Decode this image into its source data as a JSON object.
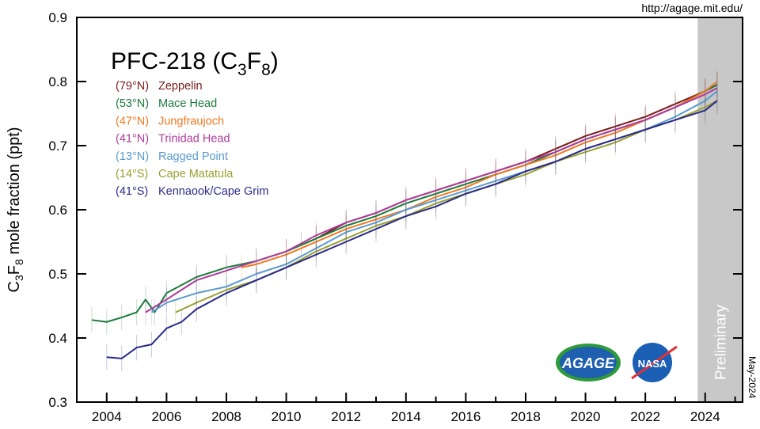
{
  "source_url": "http://agage.mit.edu/",
  "date_stamp": "May-2024",
  "logos": [
    "AGAGE",
    "NASA"
  ],
  "chart_data": {
    "type": "line",
    "title": "PFC-218 (C3F8)",
    "title_main": "PFC-218 (C",
    "title_sub1": "3",
    "title_mid": "F",
    "title_sub2": "8",
    "title_end": ")",
    "ylabel_parts": {
      "a": "C",
      "s1": "3",
      "b": "F",
      "s2": "8",
      "c": " mole fraction (ppt)"
    },
    "xlabel": "",
    "xlim": [
      2003,
      2025.25
    ],
    "ylim": [
      0.3,
      0.9
    ],
    "xticks": [
      2004,
      2006,
      2008,
      2010,
      2012,
      2014,
      2016,
      2018,
      2020,
      2022,
      2024
    ],
    "yticks": [
      "0.3",
      "0.4",
      "0.5",
      "0.6",
      "0.7",
      "0.8",
      "0.9"
    ],
    "grid": false,
    "legend_position": "top-left",
    "shaded_region": {
      "label": "Preliminary",
      "x_start": 2023.75,
      "x_end": 2025.25,
      "color": "#c8c8c8"
    },
    "series": [
      {
        "name": "Zeppelin",
        "lat": "(79°N)",
        "color": "#7a1a1a",
        "x": [
          2010.5,
          2011,
          2012,
          2013,
          2014,
          2015,
          2016,
          2017,
          2018,
          2019,
          2020,
          2021,
          2022,
          2023,
          2024,
          2024.4
        ],
        "y": [
          0.545,
          0.555,
          0.58,
          0.595,
          0.615,
          0.63,
          0.645,
          0.66,
          0.675,
          0.695,
          0.715,
          0.73,
          0.745,
          0.765,
          0.785,
          0.795
        ]
      },
      {
        "name": "Mace Head",
        "lat": "(53°N)",
        "color": "#1a7a3a",
        "x": [
          2003.5,
          2004,
          2004.5,
          2005,
          2005.3,
          2005.6,
          2006,
          2007,
          2008,
          2009,
          2010,
          2011,
          2012,
          2013,
          2014,
          2015,
          2016,
          2017,
          2018,
          2019,
          2020,
          2021,
          2022,
          2023,
          2024,
          2024.4
        ],
        "y": [
          0.428,
          0.425,
          0.432,
          0.44,
          0.46,
          0.44,
          0.47,
          0.495,
          0.51,
          0.52,
          0.535,
          0.555,
          0.575,
          0.59,
          0.61,
          0.625,
          0.64,
          0.655,
          0.67,
          0.69,
          0.71,
          0.725,
          0.74,
          0.76,
          0.785,
          0.795
        ]
      },
      {
        "name": "Jungfraujoch",
        "lat": "(47°N)",
        "color": "#f07820",
        "x": [
          2008.5,
          2009,
          2010,
          2011,
          2012,
          2013,
          2014,
          2015,
          2016,
          2017,
          2018,
          2019,
          2020,
          2021,
          2022,
          2023,
          2024,
          2024.4
        ],
        "y": [
          0.51,
          0.515,
          0.53,
          0.55,
          0.57,
          0.585,
          0.6,
          0.62,
          0.635,
          0.655,
          0.67,
          0.685,
          0.705,
          0.72,
          0.74,
          0.76,
          0.785,
          0.8
        ]
      },
      {
        "name": "Trinidad Head",
        "lat": "(41°N)",
        "color": "#b03a9a",
        "x": [
          2005.3,
          2006,
          2007,
          2008,
          2009,
          2010,
          2011,
          2012,
          2013,
          2014,
          2015,
          2016,
          2017,
          2018,
          2019,
          2020,
          2021,
          2022,
          2023,
          2024,
          2024.4
        ],
        "y": [
          0.44,
          0.46,
          0.49,
          0.505,
          0.52,
          0.535,
          0.56,
          0.58,
          0.595,
          0.615,
          0.63,
          0.645,
          0.66,
          0.675,
          0.69,
          0.71,
          0.725,
          0.74,
          0.76,
          0.78,
          0.79
        ]
      },
      {
        "name": "Ragged Point",
        "lat": "(13°N)",
        "color": "#5a9ad0",
        "x": [
          2005.5,
          2006,
          2007,
          2008,
          2009,
          2010,
          2011,
          2012,
          2013,
          2014,
          2015,
          2016,
          2017,
          2018,
          2019,
          2020,
          2021,
          2022,
          2023,
          2024,
          2024.4
        ],
        "y": [
          0.44,
          0.455,
          0.47,
          0.48,
          0.5,
          0.515,
          0.54,
          0.565,
          0.58,
          0.6,
          0.615,
          0.63,
          0.645,
          0.66,
          0.675,
          0.695,
          0.71,
          0.725,
          0.745,
          0.77,
          0.785
        ]
      },
      {
        "name": "Cape Matatula",
        "lat": "(14°S)",
        "color": "#9aa030",
        "x": [
          2006.3,
          2007,
          2008,
          2009,
          2010,
          2011,
          2012,
          2013,
          2014,
          2015,
          2016,
          2017,
          2018,
          2019,
          2020,
          2021,
          2022,
          2023,
          2024,
          2024.4
        ],
        "y": [
          0.44,
          0.455,
          0.475,
          0.49,
          0.51,
          0.535,
          0.555,
          0.575,
          0.59,
          0.61,
          0.625,
          0.64,
          0.655,
          0.675,
          0.69,
          0.705,
          0.725,
          0.74,
          0.76,
          0.77
        ]
      },
      {
        "name": "Kennaook/Cape Grim",
        "lat": "(41°S)",
        "color": "#2a2a8a",
        "x": [
          2004,
          2004.5,
          2005,
          2005.5,
          2006,
          2006.5,
          2007,
          2008,
          2009,
          2010,
          2011,
          2012,
          2013,
          2014,
          2015,
          2016,
          2017,
          2018,
          2019,
          2020,
          2021,
          2022,
          2023,
          2024,
          2024.4
        ],
        "y": [
          0.37,
          0.368,
          0.385,
          0.39,
          0.415,
          0.425,
          0.445,
          0.47,
          0.49,
          0.51,
          0.53,
          0.55,
          0.57,
          0.59,
          0.605,
          0.625,
          0.64,
          0.66,
          0.675,
          0.695,
          0.71,
          0.725,
          0.74,
          0.755,
          0.77
        ]
      }
    ]
  }
}
